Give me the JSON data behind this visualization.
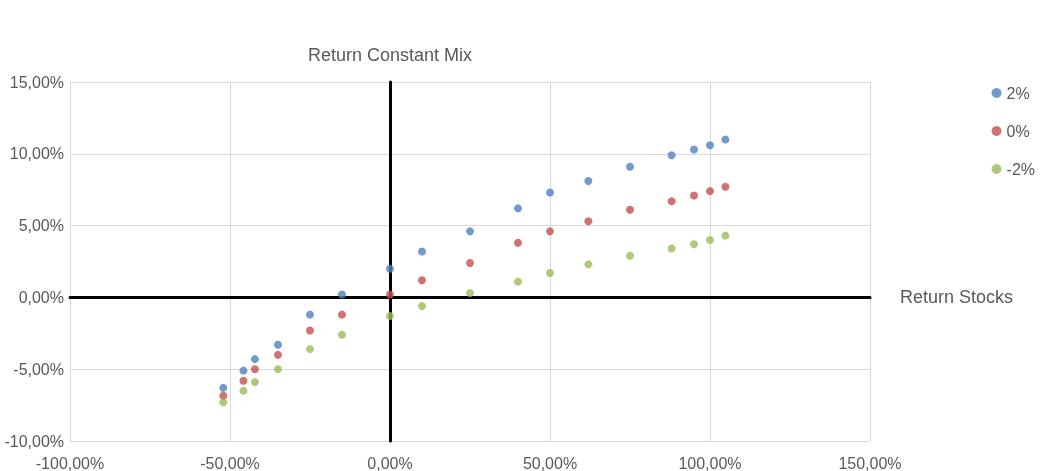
{
  "chart_data": {
    "type": "scatter",
    "xlabel": "Return Stocks",
    "ylabel": "Return Constant Mix",
    "x": [
      -52.1,
      -45.8,
      -42.2,
      -35,
      -25,
      -15,
      0,
      10,
      25,
      40,
      50,
      62,
      75,
      88,
      95,
      100,
      104.8
    ],
    "series": [
      {
        "name": "2%",
        "color": "#4f81bd",
        "values": [
          -6.3,
          -5.1,
          -4.3,
          -3.3,
          -1.2,
          0.2,
          2.0,
          3.2,
          4.6,
          6.2,
          7.3,
          8.1,
          9.1,
          9.9,
          10.3,
          10.6,
          11.0
        ]
      },
      {
        "name": "0%",
        "color": "#c0504d",
        "values": [
          -6.85,
          -5.8,
          -5.0,
          -4.0,
          -2.3,
          -1.2,
          0.2,
          1.2,
          2.4,
          3.8,
          4.6,
          5.3,
          6.1,
          6.7,
          7.1,
          7.4,
          7.7
        ]
      },
      {
        "name": "-2%",
        "color": "#9bbb59",
        "values": [
          -7.3,
          -6.5,
          -5.9,
          -5.0,
          -3.6,
          -2.6,
          -1.3,
          -0.6,
          0.3,
          1.1,
          1.7,
          2.3,
          2.9,
          3.4,
          3.7,
          4.0,
          4.3
        ]
      }
    ],
    "xlim": [
      -100,
      150
    ],
    "xticks": [
      {
        "value": -100,
        "label": "-100,00%"
      },
      {
        "value": -50,
        "label": "-50,00%"
      },
      {
        "value": 0,
        "label": "0,00%"
      },
      {
        "value": 50,
        "label": "50,00%"
      },
      {
        "value": 100,
        "label": "100,00%"
      },
      {
        "value": 150,
        "label": "150,00%"
      }
    ],
    "ylim": [
      -10,
      15
    ],
    "yticks": [
      {
        "value": -10,
        "label": "-10,00%"
      },
      {
        "value": -5,
        "label": "-5,00%"
      },
      {
        "value": 0,
        "label": "0,00%"
      },
      {
        "value": 5,
        "label": "5,00%"
      },
      {
        "value": 10,
        "label": "10,00%"
      },
      {
        "value": 15,
        "label": "15,00%"
      }
    ],
    "grid": true,
    "legend": "right",
    "marker": "circle"
  }
}
